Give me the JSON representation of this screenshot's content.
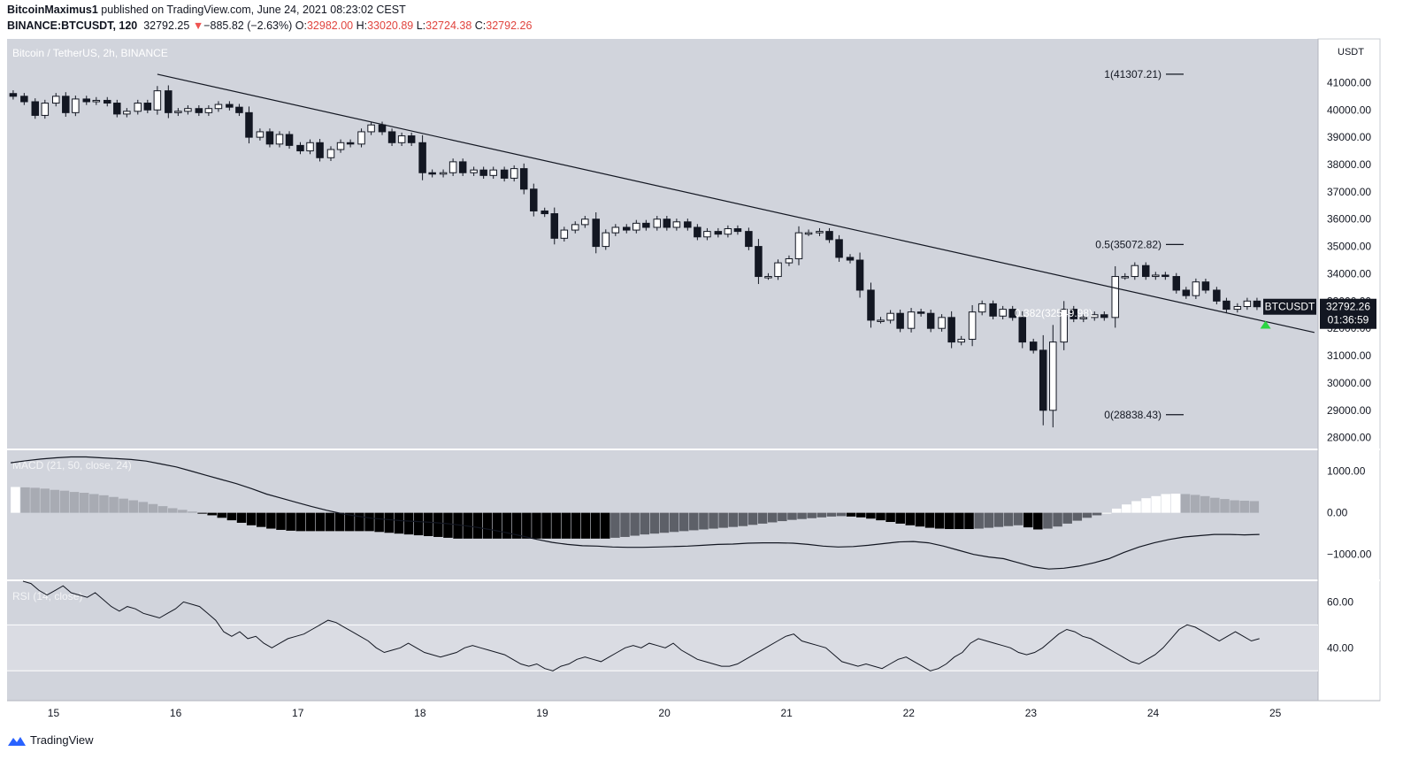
{
  "header": {
    "author": "BitcoinMaximus1",
    "published": "published on TradingView.com, June 24, 2021 08:23:02 CEST",
    "symbol_line": "BINANCE:BTCUSDT, 120",
    "last": "32792.25",
    "change": "−885.82 (−2.63%)",
    "o_label": "O:",
    "o": "32982.00",
    "h_label": "H:",
    "h": "33020.89",
    "l_label": "L:",
    "l": "32724.38",
    "c_label": "C:",
    "c": "32792.26"
  },
  "footer": {
    "brand": "TradingView"
  },
  "colors": {
    "bg": "#d1d4dc",
    "up": "#ffffff",
    "down": "#131722",
    "rsi_band": "#dadce3",
    "marker": "#2bd641"
  },
  "chart_data": [
    {
      "type": "candlestick",
      "title": "Bitcoin / TetherUS, 2h, BINANCE",
      "currency": "USDT",
      "ylim": [
        27600,
        42600
      ],
      "yticks": [
        28000,
        29000,
        30000,
        31000,
        32000,
        33000,
        34000,
        35000,
        36000,
        37000,
        38000,
        39000,
        40000,
        41000
      ],
      "ytick_labels": [
        "28000.00",
        "29000.00",
        "30000.00",
        "31000.00",
        "32000.00",
        "33000.00",
        "34000.00",
        "35000.00",
        "36000.00",
        "37000.00",
        "38000.00",
        "39000.00",
        "40000.00",
        "41000.00"
      ],
      "xlim": [
        14.62,
        25.35
      ],
      "xticks": [
        15,
        16,
        17,
        18,
        19,
        20,
        21,
        22,
        23,
        24,
        25
      ],
      "xtick_labels": [
        "15",
        "16",
        "17",
        "18",
        "19",
        "20",
        "21",
        "22",
        "23",
        "24",
        "25"
      ],
      "candles": [
        [
          14.67,
          40600,
          40500
        ],
        [
          14.76,
          40500,
          40300
        ],
        [
          14.85,
          40300,
          39800
        ],
        [
          14.93,
          39800,
          40250
        ],
        [
          15.02,
          40250,
          40500
        ],
        [
          15.1,
          40500,
          39900
        ],
        [
          15.18,
          39900,
          40400
        ],
        [
          15.27,
          40400,
          40300
        ],
        [
          15.35,
          40300,
          40350
        ],
        [
          15.44,
          40350,
          40250
        ],
        [
          15.52,
          40250,
          39850
        ],
        [
          15.6,
          39850,
          39950
        ],
        [
          15.69,
          39950,
          40250
        ],
        [
          15.77,
          40250,
          40000
        ],
        [
          15.85,
          40000,
          40700
        ],
        [
          15.94,
          40700,
          39900
        ],
        [
          16.02,
          39900,
          39950
        ],
        [
          16.1,
          39950,
          40050
        ],
        [
          16.19,
          40050,
          39900
        ],
        [
          16.27,
          39900,
          40050
        ],
        [
          16.35,
          40050,
          40200
        ],
        [
          16.44,
          40200,
          40100
        ],
        [
          16.52,
          40100,
          39900
        ],
        [
          16.6,
          39900,
          39000
        ],
        [
          16.69,
          39000,
          39200
        ],
        [
          16.77,
          39200,
          38750
        ],
        [
          16.85,
          38750,
          39100
        ],
        [
          16.93,
          39100,
          38700
        ],
        [
          17.02,
          38700,
          38500
        ],
        [
          17.1,
          38500,
          38800
        ],
        [
          17.18,
          38800,
          38250
        ],
        [
          17.27,
          38250,
          38550
        ],
        [
          17.35,
          38550,
          38800
        ],
        [
          17.43,
          38800,
          38750
        ],
        [
          17.52,
          38750,
          39200
        ],
        [
          17.6,
          39200,
          39450
        ],
        [
          17.69,
          39450,
          39200
        ],
        [
          17.77,
          39200,
          38800
        ],
        [
          17.85,
          38800,
          39050
        ],
        [
          17.93,
          39050,
          38800
        ],
        [
          18.02,
          38800,
          37700
        ],
        [
          18.1,
          37700,
          37650
        ],
        [
          18.19,
          37650,
          37700
        ],
        [
          18.27,
          37700,
          38100
        ],
        [
          18.35,
          38100,
          37700
        ],
        [
          18.44,
          37700,
          37800
        ],
        [
          18.52,
          37800,
          37600
        ],
        [
          18.6,
          37600,
          37800
        ],
        [
          18.69,
          37800,
          37500
        ],
        [
          18.77,
          37500,
          37850
        ],
        [
          18.85,
          37850,
          37100
        ],
        [
          18.93,
          37100,
          36300
        ],
        [
          19.02,
          36300,
          36200
        ],
        [
          19.1,
          36200,
          35300
        ],
        [
          19.18,
          35300,
          35600
        ],
        [
          19.27,
          35600,
          35800
        ],
        [
          19.35,
          35800,
          36000
        ],
        [
          19.44,
          36000,
          35000
        ],
        [
          19.52,
          35000,
          35500
        ],
        [
          19.6,
          35500,
          35700
        ],
        [
          19.69,
          35700,
          35600
        ],
        [
          19.77,
          35600,
          35850
        ],
        [
          19.85,
          35850,
          35700
        ],
        [
          19.94,
          35700,
          36000
        ],
        [
          20.02,
          36000,
          35700
        ],
        [
          20.1,
          35700,
          35900
        ],
        [
          20.19,
          35900,
          35700
        ],
        [
          20.27,
          35700,
          35350
        ],
        [
          20.35,
          35350,
          35550
        ],
        [
          20.44,
          35550,
          35450
        ],
        [
          20.52,
          35450,
          35650
        ],
        [
          20.6,
          35650,
          35550
        ],
        [
          20.69,
          35550,
          35000
        ],
        [
          20.77,
          35000,
          33900
        ],
        [
          20.85,
          33900,
          33900
        ],
        [
          20.93,
          33900,
          34400
        ],
        [
          21.02,
          34400,
          34550
        ],
        [
          21.1,
          34550,
          35500
        ],
        [
          21.18,
          35500,
          35500
        ],
        [
          21.27,
          35500,
          35550
        ],
        [
          21.35,
          35550,
          35250
        ],
        [
          21.43,
          35250,
          34600
        ],
        [
          21.52,
          34600,
          34500
        ],
        [
          21.6,
          34500,
          33400
        ],
        [
          21.69,
          33400,
          32300
        ],
        [
          21.77,
          32300,
          32300
        ],
        [
          21.85,
          32300,
          32550
        ],
        [
          21.93,
          32550,
          32000
        ],
        [
          22.02,
          32000,
          32600
        ],
        [
          22.1,
          32600,
          32550
        ],
        [
          22.18,
          32550,
          32000
        ],
        [
          22.27,
          32000,
          32400
        ],
        [
          22.35,
          32400,
          31500
        ],
        [
          22.43,
          31500,
          31600
        ],
        [
          22.52,
          31600,
          32600
        ],
        [
          22.6,
          32600,
          32900
        ],
        [
          22.69,
          32900,
          32450
        ],
        [
          22.77,
          32450,
          32700
        ],
        [
          22.85,
          32700,
          32400
        ],
        [
          22.93,
          32400,
          31500
        ],
        [
          23.02,
          31500,
          31200
        ],
        [
          23.1,
          31200,
          29000
        ],
        [
          23.18,
          29000,
          31500
        ],
        [
          23.27,
          31500,
          32700
        ],
        [
          23.35,
          32700,
          32350
        ],
        [
          23.43,
          32350,
          32400
        ],
        [
          23.52,
          32400,
          32500
        ],
        [
          23.6,
          32500,
          32400
        ],
        [
          23.69,
          32400,
          33900
        ],
        [
          23.77,
          33900,
          33900
        ],
        [
          23.85,
          33900,
          34300
        ],
        [
          23.94,
          34300,
          33900
        ],
        [
          24.02,
          33900,
          33950
        ],
        [
          24.1,
          33950,
          33900
        ],
        [
          24.19,
          33900,
          33400
        ],
        [
          24.27,
          33400,
          33200
        ],
        [
          24.35,
          33200,
          33700
        ],
        [
          24.43,
          33700,
          33400
        ],
        [
          24.52,
          33400,
          33000
        ],
        [
          24.6,
          33000,
          32700
        ],
        [
          24.69,
          32700,
          32800
        ],
        [
          24.77,
          32800,
          33000
        ],
        [
          24.85,
          33000,
          32792
        ]
      ],
      "trendline": [
        [
          15.85,
          41307
        ],
        [
          25.32,
          31850
        ]
      ],
      "fib_levels": [
        {
          "label": "1(41307.21)",
          "value": 41307.21
        },
        {
          "label": "0.5(35072.82)",
          "value": 35072.82
        },
        {
          "label": "0.382(32549.98)",
          "value": 32549.98
        },
        {
          "label": "0(28838.43)",
          "value": 28838.43
        }
      ],
      "price_tag": {
        "symbol": "BTCUSDT",
        "price": "32792.26",
        "countdown": "01:36:59",
        "value": 32792.26
      },
      "signal_marker": {
        "x": 24.92,
        "y": 32150
      }
    },
    {
      "type": "macd",
      "title": "MACD (21, 50, close, 24)",
      "ylim": [
        -1600,
        1500
      ],
      "yticks": [
        -1000,
        0,
        1000
      ],
      "ytick_labels": [
        "−1000.00",
        "0.00",
        "1000.00"
      ],
      "histogram": [
        620,
        610,
        600,
        580,
        550,
        530,
        500,
        480,
        450,
        420,
        380,
        340,
        300,
        260,
        210,
        160,
        110,
        70,
        30,
        -10,
        -60,
        -120,
        -180,
        -240,
        -300,
        -340,
        -380,
        -410,
        -430,
        -440,
        -440,
        -440,
        -440,
        -440,
        -440,
        -440,
        -440,
        -460,
        -480,
        -500,
        -520,
        -540,
        -560,
        -580,
        -600,
        -620,
        -620,
        -620,
        -620,
        -620,
        -620,
        -620,
        -620,
        -620,
        -620,
        -620,
        -620,
        -620,
        -620,
        -620,
        -620,
        -600,
        -580,
        -550,
        -520,
        -500,
        -480,
        -460,
        -440,
        -420,
        -400,
        -380,
        -360,
        -340,
        -320,
        -290,
        -260,
        -230,
        -200,
        -170,
        -150,
        -130,
        -110,
        -90,
        -80,
        -90,
        -110,
        -140,
        -180,
        -220,
        -260,
        -300,
        -330,
        -360,
        -380,
        -390,
        -390,
        -390,
        -380,
        -360,
        -340,
        -320,
        -300,
        -350,
        -400,
        -380,
        -330,
        -260,
        -190,
        -120,
        -60,
        0,
        100,
        200,
        280,
        350,
        400,
        450,
        460,
        450,
        430,
        400,
        360,
        330,
        300,
        290,
        280
      ],
      "line": [
        1200,
        1250,
        1290,
        1320,
        1340,
        1340,
        1320,
        1300,
        1280,
        1240,
        1170,
        1100,
        1000,
        900,
        800,
        700,
        580,
        450,
        350,
        250,
        150,
        60,
        -20,
        -80,
        -130,
        -160,
        -190,
        -210,
        -230,
        -260,
        -300,
        -350,
        -410,
        -480,
        -560,
        -640,
        -710,
        -760,
        -790,
        -800,
        -820,
        -830,
        -830,
        -820,
        -810,
        -800,
        -780,
        -760,
        -750,
        -730,
        -720,
        -720,
        -730,
        -760,
        -800,
        -820,
        -810,
        -780,
        -740,
        -700,
        -690,
        -720,
        -800,
        -900,
        -1000,
        -1060,
        -1100,
        -1200,
        -1300,
        -1350,
        -1330,
        -1280,
        -1200,
        -1100,
        -950,
        -820,
        -720,
        -640,
        -580,
        -550,
        -520,
        -520,
        -530,
        -520
      ]
    },
    {
      "type": "rsi",
      "title": "RSI (14, close)",
      "ylim": [
        17,
        69
      ],
      "yticks": [
        40,
        60
      ],
      "ytick_labels": [
        "40.00",
        "60.00"
      ],
      "band": [
        30,
        50
      ],
      "values": [
        69,
        68,
        65,
        63,
        65,
        67,
        64,
        63,
        62,
        64,
        61,
        58,
        56,
        58,
        57,
        55,
        54,
        53,
        55,
        57,
        60,
        59,
        58,
        55,
        52,
        47,
        45,
        47,
        44,
        45,
        42,
        40,
        42,
        44,
        45,
        46,
        48,
        50,
        52,
        51,
        49,
        47,
        45,
        43,
        40,
        38,
        39,
        40,
        42,
        40,
        38,
        37,
        36,
        37,
        38,
        40,
        41,
        40,
        39,
        38,
        37,
        35,
        33,
        32,
        33,
        31,
        30,
        32,
        33,
        35,
        36,
        35,
        34,
        36,
        38,
        40,
        41,
        40,
        42,
        41,
        40,
        42,
        39,
        37,
        35,
        34,
        33,
        32,
        32,
        33,
        35,
        37,
        39,
        41,
        43,
        45,
        46,
        43,
        42,
        41,
        40,
        37,
        34,
        33,
        32,
        33,
        32,
        31,
        33,
        35,
        36,
        34,
        32,
        30,
        31,
        33,
        36,
        38,
        42,
        44,
        43,
        42,
        41,
        40,
        38,
        37,
        38,
        40,
        43,
        46,
        48,
        47,
        45,
        44,
        42,
        40,
        38,
        36,
        34,
        33,
        35,
        37,
        40,
        44,
        48,
        50,
        49,
        47,
        45,
        43,
        45,
        47,
        45,
        43,
        44
      ]
    }
  ]
}
